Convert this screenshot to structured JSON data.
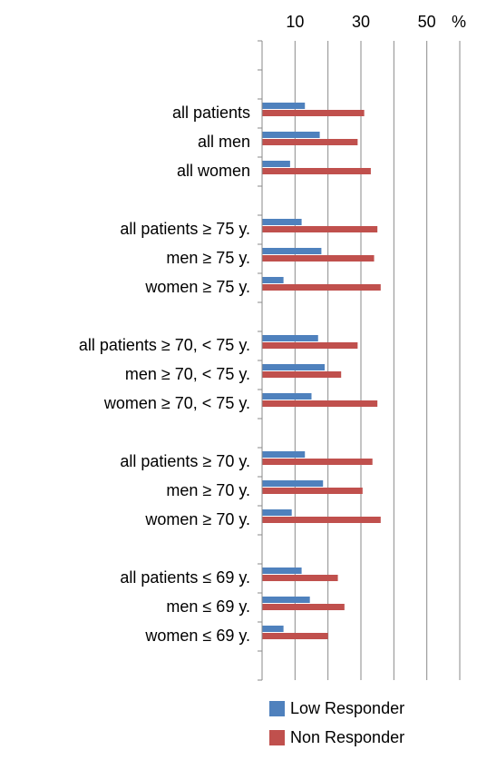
{
  "chart_data": {
    "type": "hbar",
    "xlabel": "%",
    "categories": [
      null,
      null,
      "all patients",
      "all men",
      "all women",
      null,
      "all patients ≥ 75 y.",
      "men ≥ 75 y.",
      "women ≥ 75 y.",
      null,
      "all patients ≥ 70, < 75 y.",
      "men ≥ 70, < 75 y.",
      "women ≥ 70, < 75 y.",
      null,
      "all patients ≥ 70 y.",
      "men ≥ 70 y.",
      "women ≥ 70 y.",
      null,
      "all patients ≤ 69 y.",
      "men ≤ 69 y.",
      "women ≤ 69 y.",
      null
    ],
    "series": [
      {
        "name": "Low Responder",
        "color": "#4f81bd",
        "values": [
          null,
          null,
          13,
          17.5,
          8.5,
          null,
          12,
          18,
          6.5,
          null,
          17,
          19,
          15,
          null,
          13,
          18.5,
          9,
          null,
          12,
          14.5,
          6.5,
          null
        ]
      },
      {
        "name": "Non Responder",
        "color": "#c0504d",
        "values": [
          null,
          null,
          31,
          29,
          33,
          null,
          35,
          34,
          36,
          null,
          29,
          24,
          35,
          null,
          33.5,
          30.5,
          36,
          null,
          23,
          25,
          20,
          null
        ]
      }
    ],
    "xlim": [
      0,
      60
    ],
    "xticks": [
      10,
      30,
      50
    ],
    "xminor_ticks": [
      0,
      20,
      40,
      60
    ],
    "grid": true
  }
}
